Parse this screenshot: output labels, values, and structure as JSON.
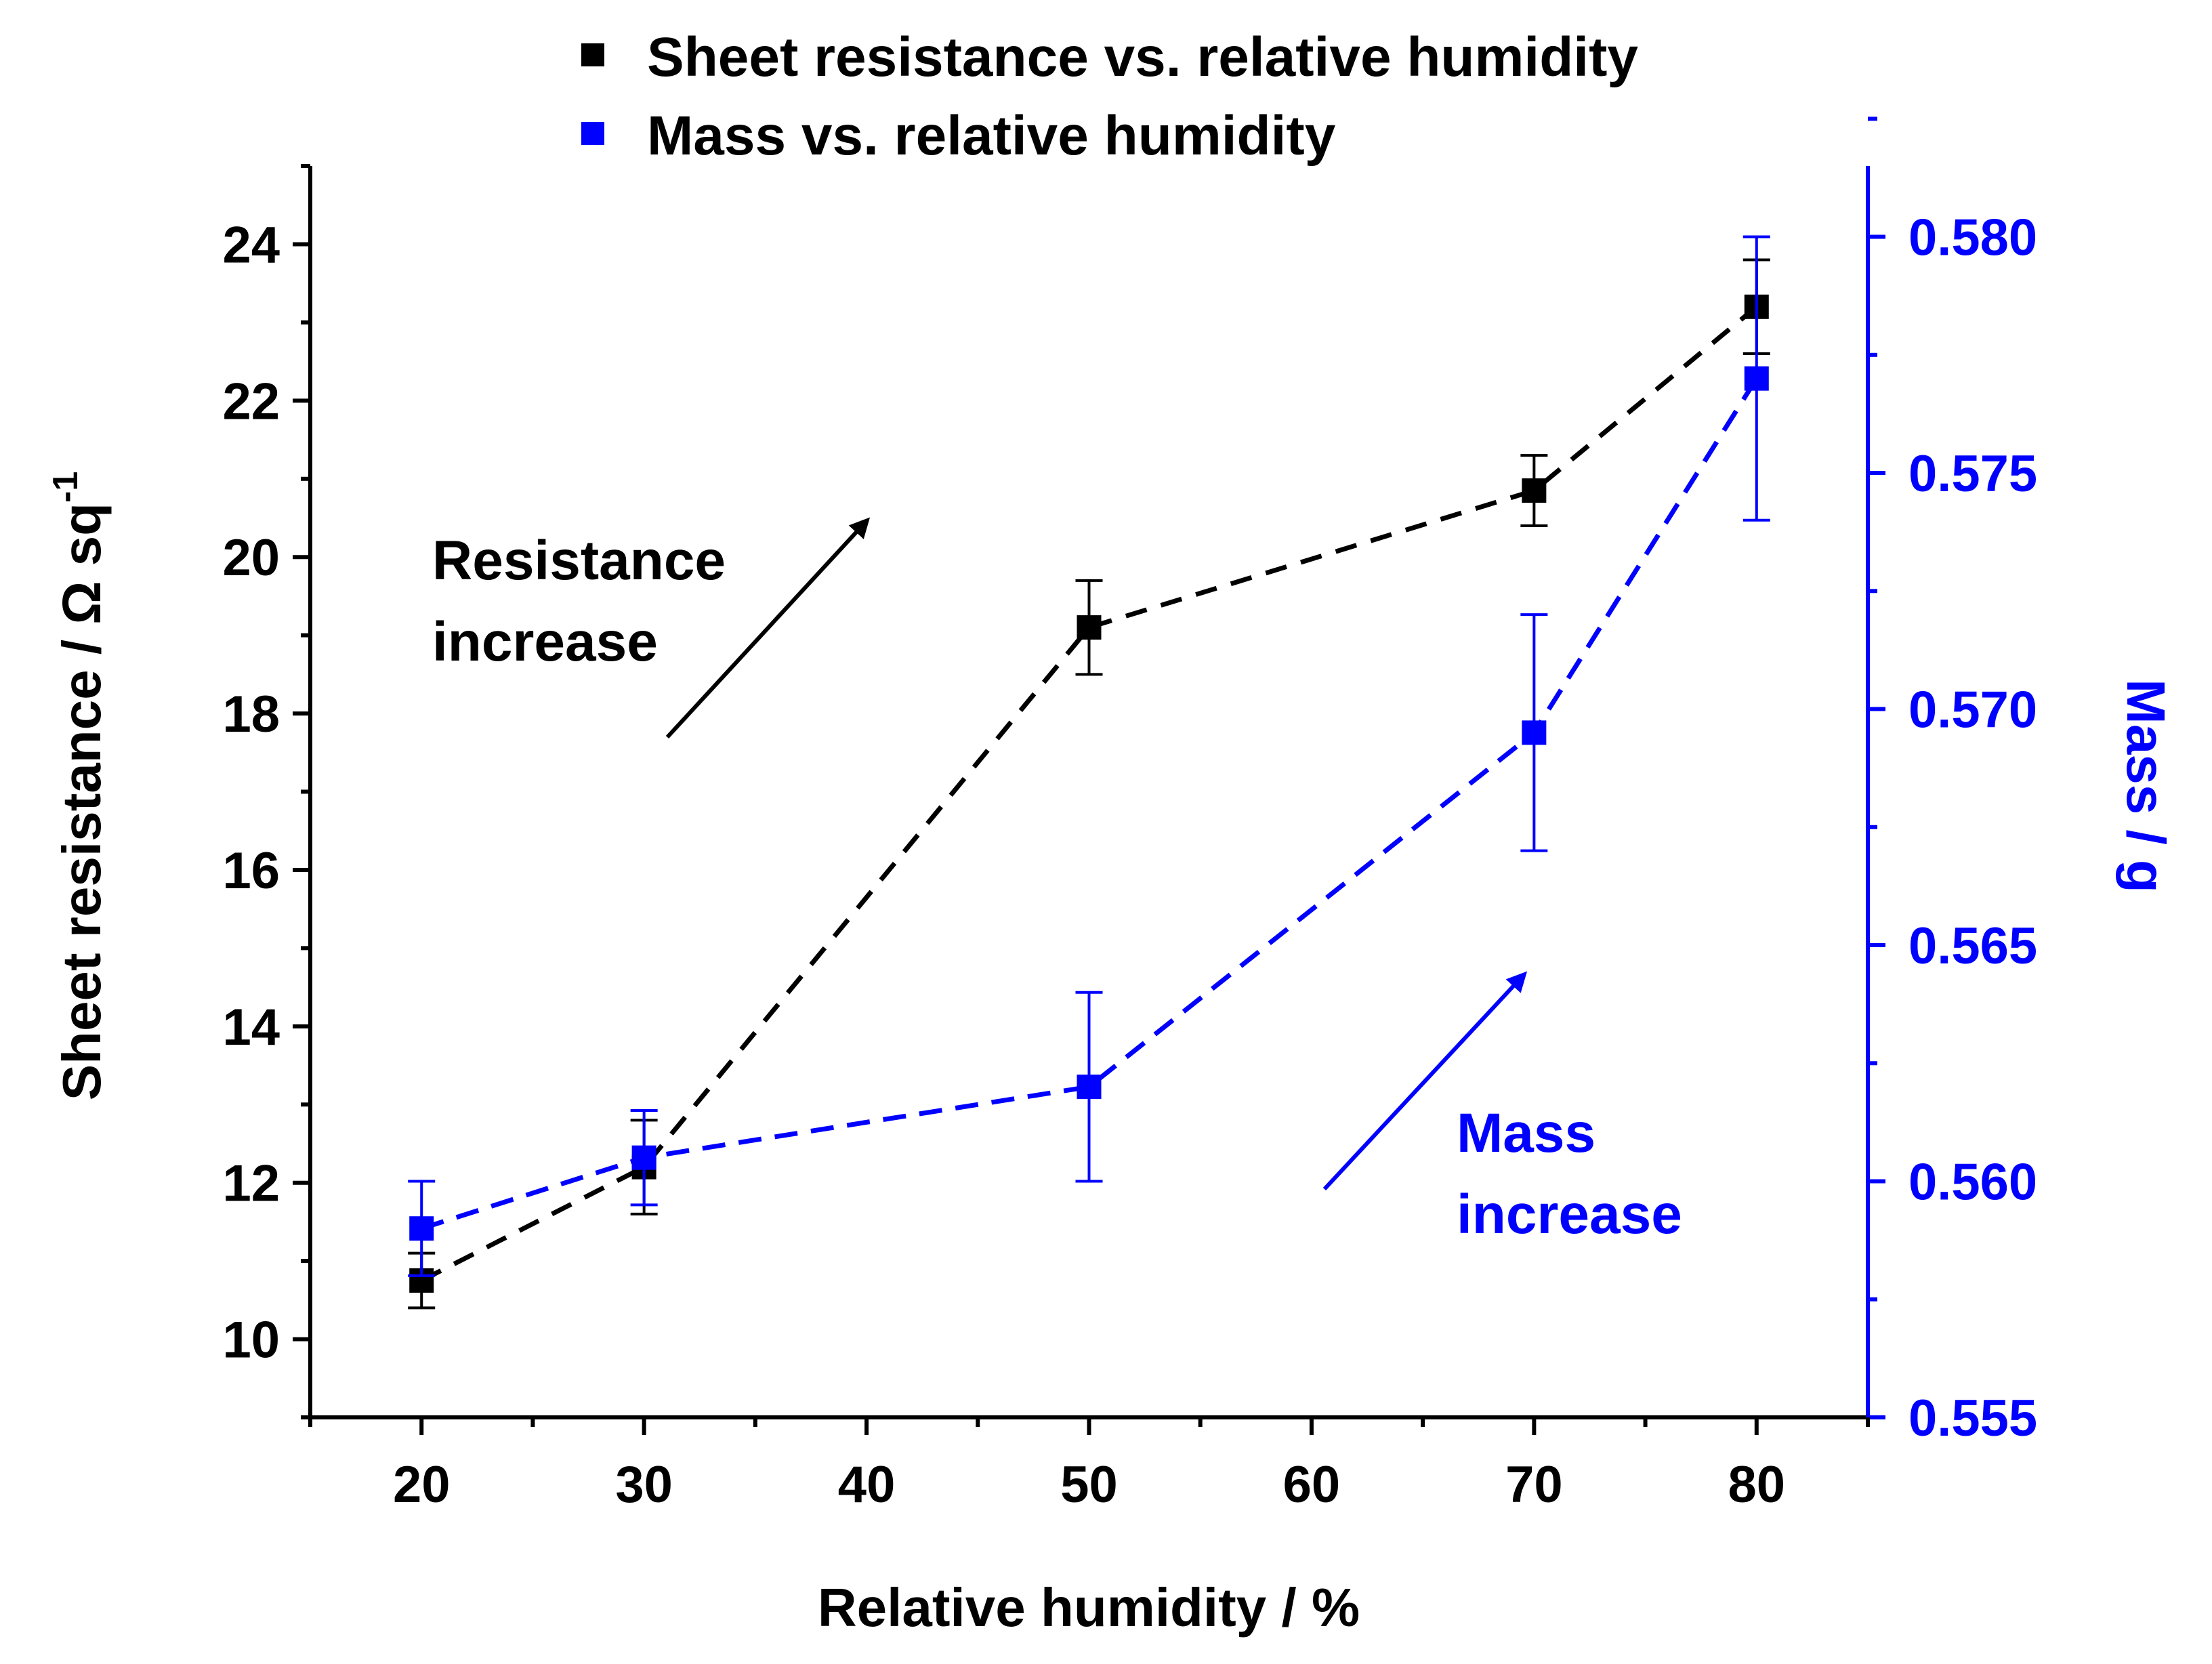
{
  "chart_data": {
    "type": "line",
    "title": "",
    "xlabel": "Relative humidity / %",
    "ylabel_left": {
      "base": "Sheet resistance / Ω sq",
      "superscript": "-1"
    },
    "ylabel_right": "Mass / g",
    "xlim": [
      15,
      85
    ],
    "ylim_left": [
      9,
      25
    ],
    "ylim_right": [
      0.555,
      0.5815
    ],
    "x_ticks": [
      20,
      30,
      40,
      50,
      60,
      70,
      80
    ],
    "x_tick_labels": [
      "20",
      "30",
      "40",
      "50",
      "60",
      "70",
      "80"
    ],
    "y_left_ticks": [
      10,
      12,
      14,
      16,
      18,
      20,
      22,
      24
    ],
    "y_left_tick_labels": [
      "10",
      "12",
      "14",
      "16",
      "18",
      "20",
      "22",
      "24"
    ],
    "y_right_ticks": [
      0.555,
      0.56,
      0.565,
      0.57,
      0.575,
      0.58
    ],
    "y_right_tick_labels": [
      "0.555",
      "0.560",
      "0.565",
      "0.570",
      "0.575",
      "0.580"
    ],
    "grid": false,
    "legend_position": "top",
    "series": [
      {
        "name": "Sheet resistance vs. relative humidity",
        "axis": "left",
        "color": "#000000",
        "x": [
          20,
          30,
          50,
          70,
          80
        ],
        "values": [
          10.75,
          12.2,
          19.1,
          20.85,
          23.2
        ],
        "err_low": [
          10.4,
          11.6,
          18.5,
          20.4,
          22.6
        ],
        "err_high": [
          11.1,
          12.8,
          19.7,
          21.3,
          23.8
        ]
      },
      {
        "name": "Mass vs. relative humidity",
        "axis": "right",
        "color": "#0000ff",
        "x": [
          20,
          30,
          50,
          70,
          80
        ],
        "values": [
          0.559,
          0.5605,
          0.562,
          0.5695,
          0.577
        ],
        "err_low": [
          0.558,
          0.5595,
          0.56,
          0.567,
          0.574
        ],
        "err_high": [
          0.56,
          0.5615,
          0.564,
          0.572,
          0.58
        ]
      }
    ],
    "annotations": [
      {
        "lines": [
          "Resistance",
          "increase"
        ],
        "color": "#000000"
      },
      {
        "lines": [
          "Mass",
          "increase"
        ],
        "color": "#0000ff"
      }
    ]
  }
}
